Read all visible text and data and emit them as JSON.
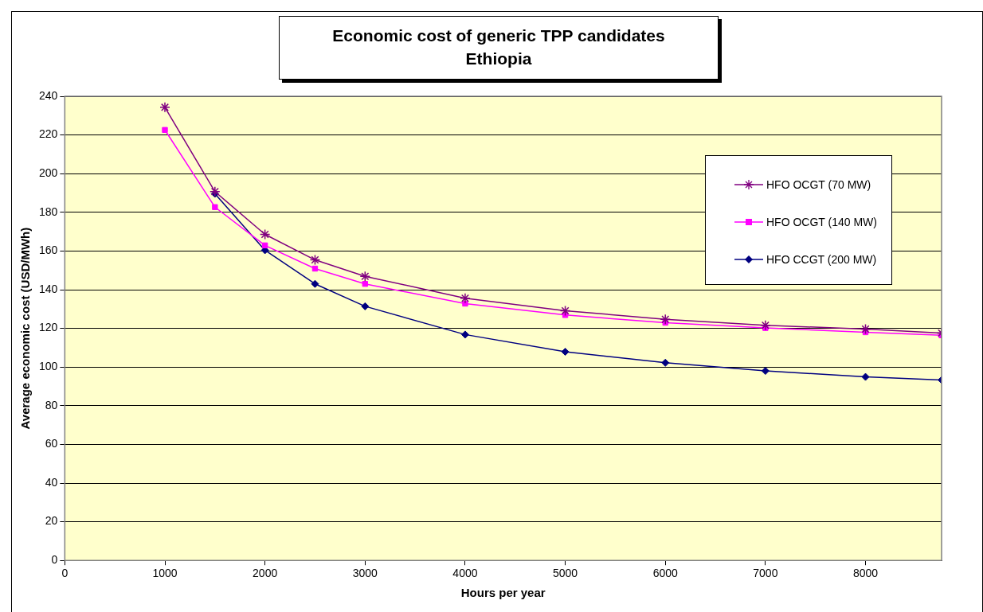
{
  "chart_data": {
    "type": "line",
    "title": "Economic cost of generic TPP candidates",
    "subtitle": "Ethiopia",
    "xlabel": "Hours per year",
    "ylabel": "Average economic cost (USD/MWh)",
    "x": [
      1000,
      1500,
      2000,
      2500,
      3000,
      4000,
      5000,
      6000,
      7000,
      8000,
      8760
    ],
    "series": [
      {
        "name": "HFO OCGT (70 MW)",
        "color": "#800080",
        "marker": "cross",
        "values": [
          234.3,
          190.7,
          168.6,
          155.4,
          146.9,
          135.6,
          129.1,
          124.7,
          121.6,
          119.6,
          117.6
        ]
      },
      {
        "name": "HFO OCGT (140 MW)",
        "color": "#ff00ff",
        "marker": "square",
        "values": [
          222.6,
          182.7,
          162.9,
          150.9,
          143.0,
          132.8,
          126.9,
          122.9,
          120.2,
          118.0,
          116.4
        ]
      },
      {
        "name": "HFO CCGT (200 MW)",
        "color": "#000080",
        "marker": "diamond",
        "values": [
          null,
          189.6,
          160.4,
          143.0,
          131.4,
          116.8,
          107.9,
          102.2,
          98.0,
          94.9,
          93.3
        ]
      }
    ],
    "xlim": [
      0,
      8760
    ],
    "xticks": [
      0,
      1000,
      2000,
      3000,
      4000,
      5000,
      6000,
      7000,
      8000
    ],
    "ylim": [
      0,
      240
    ],
    "yticks": [
      0,
      20,
      40,
      60,
      80,
      100,
      120,
      140,
      160,
      180,
      200,
      220,
      240
    ],
    "grid": "y",
    "legend": "top right",
    "line_style": "solid"
  }
}
